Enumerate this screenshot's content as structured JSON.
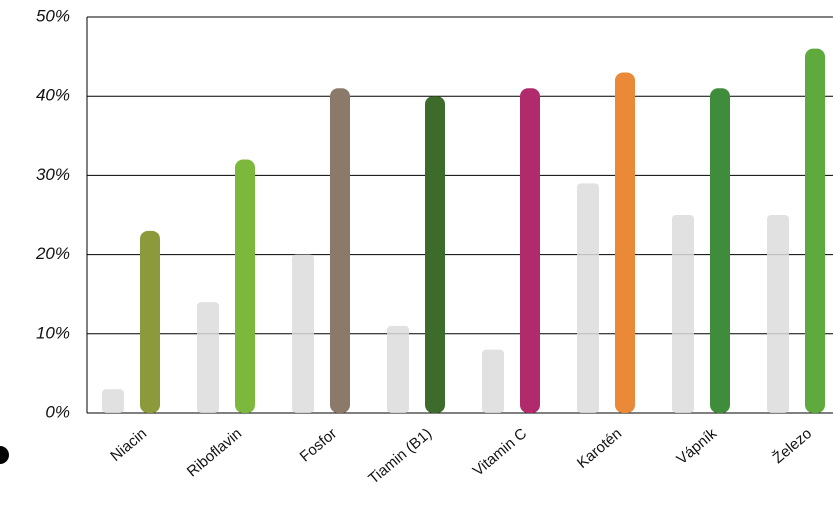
{
  "chart_data": {
    "type": "bar",
    "categories": [
      "Niacin",
      "Riboflavin",
      "Fosfor",
      "Tiamin (B1)",
      "Vitamin C",
      "Karotén",
      "Vápník",
      "Železo"
    ],
    "series": [
      {
        "color": "#dcdcdc",
        "values": [
          3,
          14,
          20,
          11,
          8,
          29,
          25,
          25
        ]
      },
      {
        "colors": [
          "#8d9a3c",
          "#7cb83c",
          "#8b7a6a",
          "#3d6b2c",
          "#b02a6c",
          "#ea8a38",
          "#3f8c3a",
          "#5eaa3c"
        ],
        "values": [
          23,
          32,
          41,
          40,
          41,
          43,
          41,
          46
        ]
      }
    ],
    "ylim": [
      0,
      50
    ],
    "yticks": [
      {
        "value": 0,
        "label": "0%"
      },
      {
        "value": 10,
        "label": "10%"
      },
      {
        "value": 20,
        "label": "20%"
      },
      {
        "value": 30,
        "label": "30%"
      },
      {
        "value": 40,
        "label": "40%"
      },
      {
        "value": 50,
        "label": "50%"
      }
    ],
    "grid": true
  }
}
